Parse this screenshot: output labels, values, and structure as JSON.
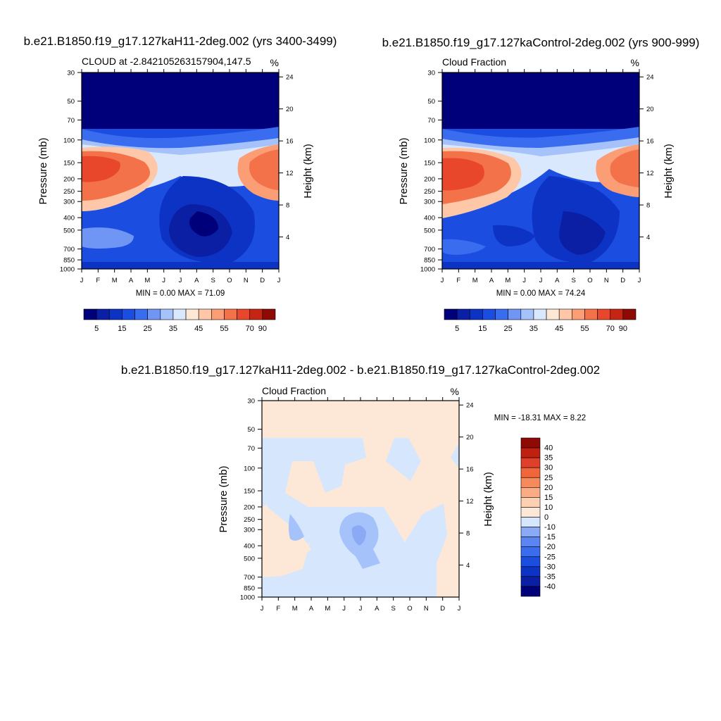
{
  "colors": {
    "ctrl_palette": [
      "#00007a",
      "#0a1fa3",
      "#0c33c4",
      "#1a4de0",
      "#3a6cf0",
      "#6f95f5",
      "#a6c2fa",
      "#dae8fd",
      "#fde8d6",
      "#fdc7a8",
      "#fb9e76",
      "#f4724a",
      "#e8472b",
      "#c72513",
      "#8f0a05"
    ],
    "diff_palette": [
      "#00007a",
      "#0a1fa3",
      "#0c33c4",
      "#1a4de0",
      "#3a6cf0",
      "#5a85f2",
      "#8aaaf6",
      "#d6e6fd",
      "#fde8d8",
      "#fcd0b0",
      "#fbac84",
      "#f68a5a",
      "#f0653a",
      "#e0402a",
      "#c0200f",
      "#8f0a05"
    ],
    "frame": "#000000"
  },
  "chart_data": [
    {
      "type": "contour",
      "title": "b.e21.B1850.f19_g17.127kaH11-2deg.002 (yrs 3400-3499)",
      "subtitle_left": "CLOUD at -2.842105263157904,147.5",
      "subtitle_right": "%",
      "xlabel": "",
      "ylabel": "Pressure (mb)",
      "ylabel_right": "Height (km)",
      "x_ticks": [
        "J",
        "F",
        "M",
        "A",
        "M",
        "J",
        "J",
        "A",
        "S",
        "O",
        "N",
        "D",
        "J"
      ],
      "y_ticks_pressure": [
        "30",
        "50",
        "70",
        "100",
        "150",
        "200",
        "250",
        "300",
        "400",
        "500",
        "700",
        "850",
        "1000"
      ],
      "y_ticks_height": [
        "24",
        "20",
        "16",
        "12",
        "8",
        "4"
      ],
      "stats": "MIN =   0.00 MAX =  71.09",
      "colorbar_labels": [
        "5",
        "15",
        "25",
        "35",
        "45",
        "55",
        "70",
        "90"
      ],
      "colorbar_levels": [
        0,
        5,
        10,
        15,
        20,
        25,
        30,
        35,
        40,
        45,
        50,
        55,
        60,
        70,
        80,
        90
      ],
      "min": 0.0,
      "max": 71.09
    },
    {
      "type": "contour",
      "title": "b.e21.B1850.f19_g17.127kaControl-2deg.002 (yrs 900-999)",
      "subtitle_left": "Cloud Fraction",
      "subtitle_right": "%",
      "xlabel": "",
      "ylabel": "Pressure (mb)",
      "ylabel_right": "Height (km)",
      "x_ticks": [
        "J",
        "F",
        "M",
        "A",
        "M",
        "J",
        "J",
        "A",
        "S",
        "O",
        "N",
        "D",
        "J"
      ],
      "y_ticks_pressure": [
        "30",
        "50",
        "70",
        "100",
        "150",
        "200",
        "250",
        "300",
        "400",
        "500",
        "700",
        "850",
        "1000"
      ],
      "y_ticks_height": [
        "24",
        "20",
        "16",
        "12",
        "8",
        "4"
      ],
      "stats": "MIN =   0.00 MAX =  74.24",
      "colorbar_labels": [
        "5",
        "15",
        "25",
        "35",
        "45",
        "55",
        "70",
        "90"
      ],
      "colorbar_levels": [
        0,
        5,
        10,
        15,
        20,
        25,
        30,
        35,
        40,
        45,
        50,
        55,
        60,
        70,
        80,
        90
      ],
      "min": 0.0,
      "max": 74.24
    },
    {
      "type": "contour",
      "title": "b.e21.B1850.f19_g17.127kaH11-2deg.002 - b.e21.B1850.f19_g17.127kaControl-2deg.002",
      "subtitle_left": "Cloud Fraction",
      "subtitle_right": "%",
      "xlabel": "",
      "ylabel": "Pressure (mb)",
      "ylabel_right": "Height (km)",
      "x_ticks": [
        "J",
        "F",
        "M",
        "A",
        "M",
        "J",
        "J",
        "A",
        "S",
        "O",
        "N",
        "D",
        "J"
      ],
      "y_ticks_pressure": [
        "30",
        "50",
        "70",
        "100",
        "150",
        "200",
        "250",
        "300",
        "400",
        "500",
        "700",
        "850",
        "1000"
      ],
      "y_ticks_height": [
        "24",
        "20",
        "16",
        "12",
        "8",
        "4"
      ],
      "stats": "MIN = -18.31 MAX =   8.22",
      "colorbar_labels": [
        "40",
        "35",
        "30",
        "25",
        "20",
        "15",
        "10",
        "0",
        "-10",
        "-15",
        "-20",
        "-25",
        "-30",
        "-35",
        "-40"
      ],
      "colorbar_levels": [
        -40,
        -35,
        -30,
        -25,
        -20,
        -15,
        -10,
        0,
        10,
        15,
        20,
        25,
        30,
        35,
        40
      ],
      "min": -18.31,
      "max": 8.22
    }
  ]
}
